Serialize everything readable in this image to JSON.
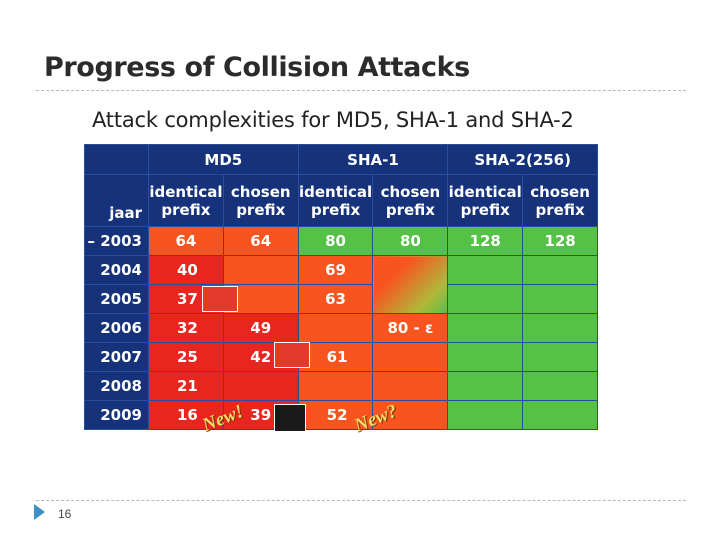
{
  "slide": {
    "title": "Progress of Collision Attacks",
    "subtitle": "Attack complexities for MD5, SHA-1 and SHA-2",
    "page_number": "16"
  },
  "table": {
    "hash_headers": [
      "MD5",
      "SHA-1",
      "SHA-2(256)"
    ],
    "year_header": "jaar",
    "sub_headers": [
      [
        "identical",
        "prefix"
      ],
      [
        "chosen",
        "prefix"
      ],
      [
        "identical",
        "prefix"
      ],
      [
        "chosen",
        "prefix"
      ],
      [
        "identical",
        "prefix"
      ],
      [
        "chosen",
        "prefix"
      ]
    ],
    "rows": [
      {
        "year": "– 2003",
        "md5_id": "64",
        "md5_ch": "64",
        "sha1_id": "80",
        "sha1_ch": "80",
        "sha2_id": "128",
        "sha2_ch": "128"
      },
      {
        "year": "2004",
        "md5_id": "40",
        "md5_ch": "",
        "sha1_id": "69",
        "sha1_ch": "",
        "sha2_id": "",
        "sha2_ch": ""
      },
      {
        "year": "2005",
        "md5_id": "37",
        "md5_ch": "",
        "sha1_id": "63",
        "sha1_ch": "",
        "sha2_id": "",
        "sha2_ch": ""
      },
      {
        "year": "2006",
        "md5_id": "32",
        "md5_ch": "49",
        "sha1_id": "",
        "sha1_ch": "80 - ε",
        "sha2_id": "",
        "sha2_ch": ""
      },
      {
        "year": "2007",
        "md5_id": "25",
        "md5_ch": "42",
        "sha1_id": "61",
        "sha1_ch": "",
        "sha2_id": "",
        "sha2_ch": ""
      },
      {
        "year": "2008",
        "md5_id": "21",
        "md5_ch": "",
        "sha1_id": "",
        "sha1_ch": "",
        "sha2_id": "",
        "sha2_ch": ""
      },
      {
        "year": "2009",
        "md5_id": "16",
        "md5_ch": "39",
        "sha1_id": "52",
        "sha1_ch": "",
        "sha2_id": "",
        "sha2_ch": ""
      }
    ],
    "badges": [
      "New!",
      "New?"
    ],
    "colors": {
      "red": "#e8251e",
      "orange": "#f7541f",
      "green": "#55c146",
      "header": "#16327a"
    }
  }
}
